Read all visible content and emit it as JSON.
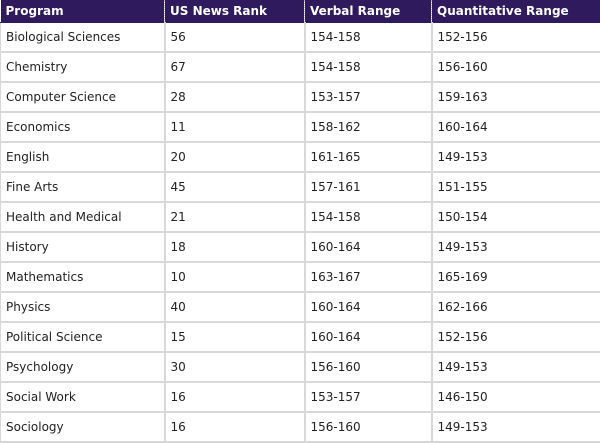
{
  "table": {
    "columns": [
      "Program",
      "US News Rank",
      "Verbal Range",
      "Quantitative Range"
    ],
    "rows": [
      [
        "Biological Sciences",
        "56",
        "154-158",
        "152-156"
      ],
      [
        "Chemistry",
        "67",
        "154-158",
        "156-160"
      ],
      [
        "Computer Science",
        "28",
        "153-157",
        "159-163"
      ],
      [
        "Economics",
        "11",
        "158-162",
        "160-164"
      ],
      [
        "English",
        "20",
        "161-165",
        "149-153"
      ],
      [
        "Fine Arts",
        "45",
        "157-161",
        "151-155"
      ],
      [
        "Health and Medical",
        "21",
        "154-158",
        "150-154"
      ],
      [
        "History",
        "18",
        "160-164",
        "149-153"
      ],
      [
        "Mathematics",
        "10",
        "163-167",
        "165-169"
      ],
      [
        "Physics",
        "40",
        "160-164",
        "162-166"
      ],
      [
        "Political Science",
        "15",
        "160-164",
        "152-156"
      ],
      [
        "Psychology",
        "30",
        "156-160",
        "149-153"
      ],
      [
        "Social Work",
        "16",
        "153-157",
        "146-150"
      ],
      [
        "Sociology",
        "16",
        "156-160",
        "149-153"
      ]
    ]
  },
  "colors": {
    "header_background": "#2e1a5c",
    "header_text": "#ffffff",
    "grid_line": "#d8d8d8"
  }
}
